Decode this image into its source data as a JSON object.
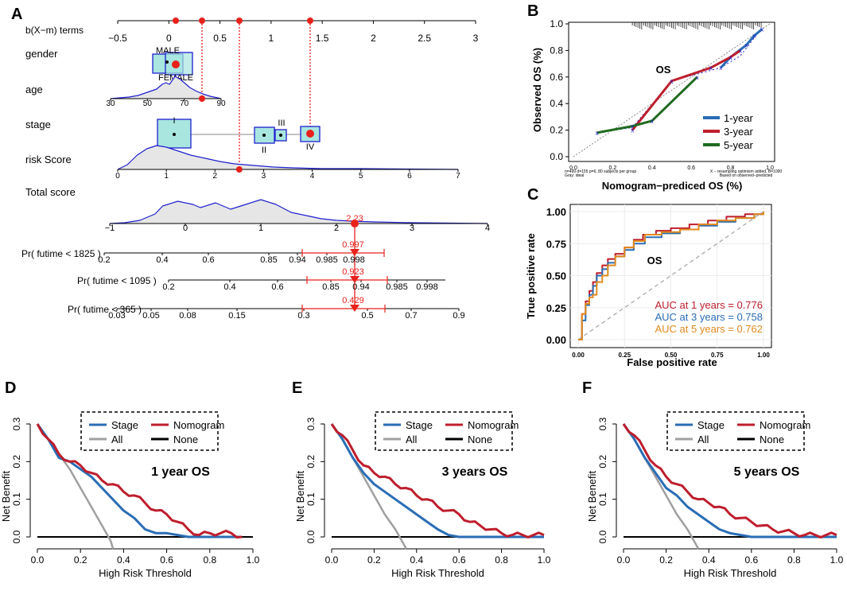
{
  "colors": {
    "blue": "#2a6db5",
    "red": "#be1e2d",
    "green": "#1e6b1e",
    "orange": "#e08a1e",
    "gray": "#a0a0a0",
    "box": "#a8e6df",
    "nomo_red": "#e8211b",
    "navy": "#1f1fcf"
  },
  "chart_data": [
    {
      "panel": "A",
      "type": "nomogram",
      "terms_label": "b(X−m) terms",
      "terms_ticks": [
        "−0.5",
        "0",
        "0.5",
        "1",
        "1.5",
        "2",
        "2.5",
        "3"
      ],
      "terms_range": [
        -0.5,
        3
      ],
      "points": [
        0,
        0.27,
        0.6,
        1.35
      ],
      "vars": {
        "gender": "gender",
        "age": "age",
        "stage": "stage",
        "risk": "risk Score",
        "total": "Total score"
      },
      "gender_levels": [
        "MALE",
        "FEMALE"
      ],
      "age_ticks": [
        "30",
        "50",
        "70",
        "90"
      ],
      "stage_levels": [
        "I",
        "II",
        "III",
        "IV"
      ],
      "risk_ticks": [
        "0",
        "1",
        "2",
        "3",
        "4",
        "5",
        "6",
        "7"
      ],
      "risk_value": 2.5,
      "total_ticks": [
        "−1",
        "0",
        "1",
        "2",
        "3",
        "4"
      ],
      "total_value": "2.23",
      "prob_rows": [
        {
          "label": "Pr( futime < 1825 )",
          "ticks": [
            "0.2",
            "0.4",
            "0.6",
            "0.85",
            "0.94",
            "0.985",
            "0.998"
          ],
          "value": "0.997"
        },
        {
          "label": "Pr( futime < 1095 )",
          "ticks": [
            "0.2",
            "0.4",
            "0.6",
            "0.85",
            "0.94",
            "0.985",
            "0.998"
          ],
          "value": "0.923"
        },
        {
          "label": "Pr( futime < 365 )",
          "ticks": [
            "0.03",
            "0.05",
            "0.08",
            "0.15",
            "0.3",
            "0.5",
            "0.7",
            "0.9"
          ],
          "value": "0.429"
        }
      ]
    },
    {
      "panel": "B",
      "type": "line",
      "title": "OS",
      "xlabel": "Nomogram−prediced OS (%)",
      "ylabel": "Observed OS (%)",
      "xlim": [
        0,
        1
      ],
      "ylim": [
        0,
        1
      ],
      "ticks": [
        "0.0",
        "0.2",
        "0.4",
        "0.6",
        "0.8",
        "1.0"
      ],
      "footnote_left": [
        "n=499 d=155 p=6, 80 subjects per group",
        "Gray: ideal"
      ],
      "footnote_right": [
        "X − resampling optimism added, B=1000",
        "Based on observed−predicted"
      ],
      "series": [
        {
          "name": "1-year",
          "color": "blue",
          "x": [
            0.75,
            0.8,
            0.88,
            0.92,
            0.96
          ],
          "y": [
            0.67,
            0.75,
            0.84,
            0.91,
            0.96
          ]
        },
        {
          "name": "3-year",
          "color": "red",
          "x": [
            0.3,
            0.5,
            0.7,
            0.8,
            0.85
          ],
          "y": [
            0.2,
            0.57,
            0.67,
            0.75,
            0.8
          ]
        },
        {
          "name": "5-year",
          "color": "green",
          "x": [
            0.12,
            0.3,
            0.4,
            0.63
          ],
          "y": [
            0.18,
            0.23,
            0.27,
            0.6
          ]
        }
      ]
    },
    {
      "panel": "C",
      "type": "line",
      "title": "OS",
      "xlabel": "False positive rate",
      "ylabel": "True positive rate",
      "xlim": [
        0,
        1
      ],
      "ylim": [
        0,
        1
      ],
      "xticks": [
        "0.00",
        "0.25",
        "0.50",
        "0.75",
        "1.00"
      ],
      "yticks": [
        "0.00",
        "0.25",
        "0.50",
        "0.75",
        "1.00"
      ],
      "auc_labels": [
        "AUC at 1 years = 0.776",
        "AUC at 3 years = 0.758",
        "AUC at 5 years = 0.762"
      ],
      "series": [
        {
          "name": "1 years",
          "color": "red",
          "x": [
            0,
            0.02,
            0.04,
            0.06,
            0.08,
            0.1,
            0.13,
            0.16,
            0.2,
            0.25,
            0.3,
            0.35,
            0.42,
            0.5,
            0.6,
            0.7,
            0.8,
            0.9,
            1
          ],
          "y": [
            0,
            0.2,
            0.3,
            0.38,
            0.45,
            0.52,
            0.58,
            0.63,
            0.67,
            0.72,
            0.78,
            0.82,
            0.85,
            0.87,
            0.9,
            0.93,
            0.96,
            0.98,
            1
          ]
        },
        {
          "name": "3 years",
          "color": "blue",
          "x": [
            0,
            0.02,
            0.04,
            0.06,
            0.08,
            0.1,
            0.13,
            0.16,
            0.2,
            0.25,
            0.3,
            0.36,
            0.45,
            0.55,
            0.65,
            0.75,
            0.85,
            0.95,
            1
          ],
          "y": [
            0,
            0.15,
            0.27,
            0.35,
            0.42,
            0.5,
            0.55,
            0.6,
            0.65,
            0.7,
            0.75,
            0.8,
            0.83,
            0.86,
            0.89,
            0.92,
            0.95,
            0.98,
            1
          ]
        },
        {
          "name": "5 years",
          "color": "orange",
          "x": [
            0,
            0.02,
            0.04,
            0.06,
            0.08,
            0.1,
            0.13,
            0.16,
            0.2,
            0.25,
            0.3,
            0.36,
            0.45,
            0.55,
            0.65,
            0.75,
            0.85,
            0.95,
            1
          ],
          "y": [
            0,
            0.2,
            0.28,
            0.33,
            0.35,
            0.45,
            0.5,
            0.58,
            0.65,
            0.72,
            0.77,
            0.82,
            0.84,
            0.86,
            0.9,
            0.93,
            0.95,
            0.98,
            1
          ]
        }
      ]
    },
    {
      "panel": "D",
      "type": "line",
      "title": "1 year OS",
      "xlabel": "High Risk Threshold",
      "ylabel": "Net Benefit",
      "xlim": [
        0,
        1
      ],
      "ylim": [
        -0.02,
        0.3
      ],
      "xticks": [
        "0.0",
        "0.2",
        "0.4",
        "0.6",
        "0.8",
        "1.0"
      ],
      "yticks": [
        "0.0",
        "0.1",
        "0.2",
        "0.3"
      ],
      "legend": [
        "Stage",
        "Nomogram",
        "All",
        "None"
      ],
      "x": [
        0,
        0.05,
        0.1,
        0.15,
        0.2,
        0.25,
        0.3,
        0.35,
        0.4,
        0.45,
        0.5,
        0.55,
        0.6,
        0.65,
        0.7,
        0.75,
        0.8,
        0.85,
        0.9,
        0.95
      ],
      "stage": [
        0.3,
        0.26,
        0.21,
        0.2,
        0.18,
        0.16,
        0.13,
        0.1,
        0.07,
        0.05,
        0.02,
        0.01,
        0.01,
        0.005,
        0,
        0,
        0,
        0,
        0,
        0
      ],
      "nomogram": [
        0.3,
        0.26,
        0.22,
        0.2,
        0.19,
        0.17,
        0.15,
        0.14,
        0.12,
        0.11,
        0.09,
        0.07,
        0.06,
        0.04,
        0.02,
        0.005,
        0.01,
        0.01,
        0.01,
        0
      ],
      "all_x": [
        0,
        0.05,
        0.1,
        0.15,
        0.2,
        0.25,
        0.3,
        0.34
      ],
      "all": [
        0.3,
        0.26,
        0.22,
        0.18,
        0.13,
        0.08,
        0.03,
        -0.01
      ]
    },
    {
      "panel": "E",
      "type": "line",
      "title": "3 years OS",
      "xlabel": "High Risk Threshold",
      "ylabel": "Net Benefit",
      "xlim": [
        0,
        1
      ],
      "ylim": [
        -0.02,
        0.3
      ],
      "xticks": [
        "0.0",
        "0.2",
        "0.4",
        "0.6",
        "0.8",
        "1.0"
      ],
      "yticks": [
        "0.0",
        "0.1",
        "0.2",
        "0.3"
      ],
      "legend": [
        "Stage",
        "Nomogram",
        "All",
        "None"
      ],
      "x": [
        0,
        0.05,
        0.1,
        0.15,
        0.2,
        0.25,
        0.3,
        0.35,
        0.4,
        0.45,
        0.5,
        0.55,
        0.6,
        0.65,
        0.7,
        0.75,
        0.8,
        0.85,
        0.9,
        0.95,
        1
      ],
      "stage": [
        0.3,
        0.26,
        0.21,
        0.17,
        0.14,
        0.12,
        0.1,
        0.08,
        0.06,
        0.04,
        0.02,
        0.005,
        0,
        0,
        0,
        0,
        0,
        0,
        0,
        0,
        0
      ],
      "nomogram": [
        0.3,
        0.27,
        0.23,
        0.19,
        0.17,
        0.16,
        0.14,
        0.13,
        0.11,
        0.1,
        0.08,
        0.07,
        0.06,
        0.04,
        0.03,
        0.02,
        0.01,
        0.005,
        0.005,
        0.005,
        0.005
      ],
      "all_x": [
        0,
        0.05,
        0.1,
        0.15,
        0.2,
        0.25,
        0.3,
        0.34
      ],
      "all": [
        0.3,
        0.26,
        0.21,
        0.16,
        0.11,
        0.06,
        0.02,
        -0.02
      ]
    },
    {
      "panel": "F",
      "type": "line",
      "title": "5 years OS",
      "xlabel": "High Risk Threshold",
      "ylabel": "Net Benefit",
      "xlim": [
        0,
        1
      ],
      "ylim": [
        -0.02,
        0.3
      ],
      "xticks": [
        "0.0",
        "0.2",
        "0.4",
        "0.6",
        "0.8",
        "1.0"
      ],
      "yticks": [
        "0.0",
        "0.1",
        "0.2",
        "0.3"
      ],
      "legend": [
        "Stage",
        "Nomogram",
        "All",
        "None"
      ],
      "x": [
        0,
        0.05,
        0.1,
        0.15,
        0.2,
        0.25,
        0.3,
        0.35,
        0.4,
        0.45,
        0.5,
        0.55,
        0.6,
        0.65,
        0.7,
        0.75,
        0.8,
        0.85,
        0.9,
        0.95,
        1
      ],
      "stage": [
        0.3,
        0.26,
        0.21,
        0.17,
        0.13,
        0.11,
        0.08,
        0.06,
        0.04,
        0.02,
        0.01,
        0.005,
        0,
        0,
        0,
        0,
        0,
        0,
        0,
        0,
        0
      ],
      "nomogram": [
        0.3,
        0.27,
        0.23,
        0.19,
        0.16,
        0.14,
        0.12,
        0.1,
        0.09,
        0.08,
        0.06,
        0.05,
        0.04,
        0.03,
        0.02,
        0.015,
        0.01,
        0.005,
        0.005,
        0.005,
        0.005
      ],
      "all_x": [
        0,
        0.05,
        0.1,
        0.15,
        0.2,
        0.25,
        0.3,
        0.34
      ],
      "all": [
        0.3,
        0.26,
        0.21,
        0.16,
        0.11,
        0.06,
        0.02,
        -0.02
      ]
    }
  ]
}
